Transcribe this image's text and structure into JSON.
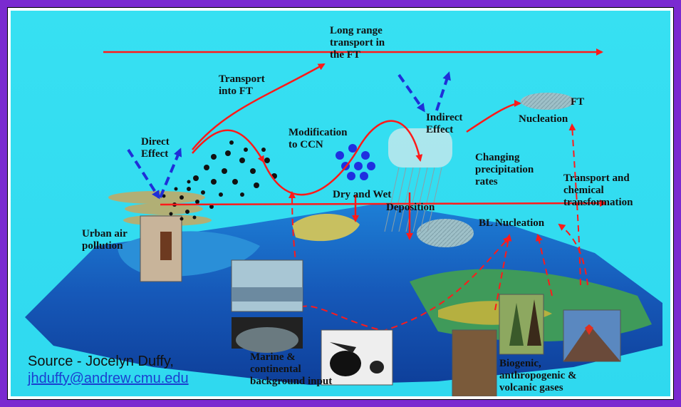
{
  "labels": {
    "long_range": "Long range\ntransport in\nthe FT",
    "transport_ft": "Transport\ninto FT",
    "direct_effect": "Direct\nEffect",
    "modification": "Modification\nto CCN",
    "indirect_effect": "Indirect\nEffect",
    "ft": "FT",
    "nucleation": "Nucleation",
    "changing_precip": "Changing\nprecipitation\nrates",
    "dry_wet": "Dry and Wet",
    "deposition": "Deposition",
    "transport_chem": "Transport and\nchemical\ntransformation",
    "bl_nucleation": "BL Nucleation",
    "urban": "Urban air\npollution",
    "marine": "Marine &\ncontinental\nbackground input",
    "biogenic": "Biogenic,\nanthropogenic &\nvolcanic gases"
  },
  "source": {
    "line1": "Source - Jocelyn Duffy,",
    "email": "jhduffy@andrew.cmu.edu"
  },
  "colors": {
    "frame": "#7a2ad0",
    "sky": "#37e0f2",
    "arrow_red": "#ff1a1a",
    "arrow_blue": "#1f2fd8",
    "ccn_blue": "#1f2fe0"
  }
}
